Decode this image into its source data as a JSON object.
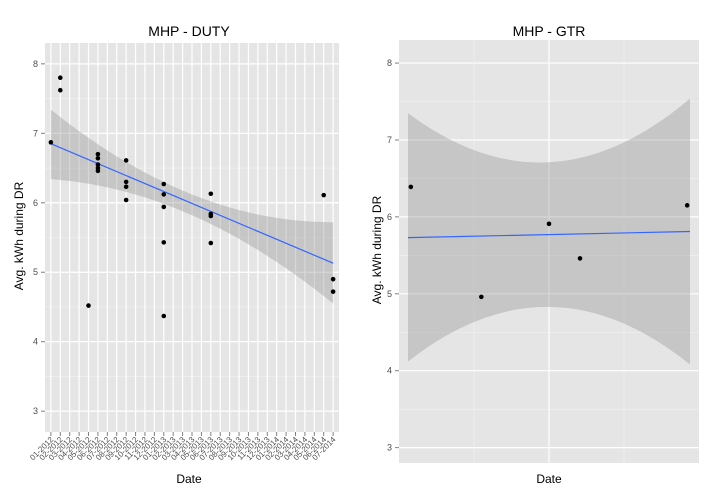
{
  "chart_data": [
    {
      "type": "scatter",
      "title": "MHP -   DUTY",
      "xlabel": "Date",
      "ylabel": "Avg. kWh during DR",
      "ylim": [
        2.7,
        8.3
      ],
      "yticks": [
        3,
        4,
        5,
        6,
        7,
        8
      ],
      "grid": true,
      "xtick_labels": [
        "01-2012",
        "02-2012",
        "03-2012",
        "04-2012",
        "05-2012",
        "06-2012",
        "07-2012",
        "08-2012",
        "09-2012",
        "10-2012",
        "11-2012",
        "12-2012",
        "01-2013",
        "02-2013",
        "03-2013",
        "04-2013",
        "05-2013",
        "06-2013",
        "07-2013",
        "08-2013",
        "09-2013",
        "10-2013",
        "11-2013",
        "12-2013",
        "01-2014",
        "02-2014",
        "03-2014",
        "04-2014",
        "05-2014",
        "06-2014",
        "07-2014"
      ],
      "points": [
        {
          "x": "2012-01",
          "y": 6.87
        },
        {
          "x": "2012-02",
          "y": 7.8
        },
        {
          "x": "2012-02",
          "y": 7.62
        },
        {
          "x": "2012-05",
          "y": 4.52
        },
        {
          "x": "2012-06",
          "y": 6.7
        },
        {
          "x": "2012-06",
          "y": 6.64
        },
        {
          "x": "2012-06",
          "y": 6.55
        },
        {
          "x": "2012-06",
          "y": 6.5
        },
        {
          "x": "2012-06",
          "y": 6.46
        },
        {
          "x": "2012-09",
          "y": 6.61
        },
        {
          "x": "2012-09",
          "y": 6.3
        },
        {
          "x": "2012-09",
          "y": 6.23
        },
        {
          "x": "2012-09",
          "y": 6.04
        },
        {
          "x": "2013-01",
          "y": 6.27
        },
        {
          "x": "2013-01",
          "y": 6.12
        },
        {
          "x": "2013-01",
          "y": 5.94
        },
        {
          "x": "2013-01",
          "y": 5.43
        },
        {
          "x": "2013-01",
          "y": 4.37
        },
        {
          "x": "2013-06",
          "y": 6.13
        },
        {
          "x": "2013-06",
          "y": 5.84
        },
        {
          "x": "2013-06",
          "y": 5.81
        },
        {
          "x": "2013-06",
          "y": 5.42
        },
        {
          "x": "2014-06",
          "y": 6.11
        },
        {
          "x": "2014-07",
          "y": 4.9
        },
        {
          "x": "2014-07",
          "y": 4.72
        }
      ],
      "trend": {
        "x": [
          "2012-01",
          "2014-07"
        ],
        "y": [
          6.85,
          5.13
        ]
      },
      "confidence_band": {
        "x": [
          "2012-01",
          "2013-04",
          "2014-07"
        ],
        "upper": [
          7.34,
          6.12,
          5.72
        ],
        "lower": [
          6.34,
          5.82,
          4.55
        ]
      },
      "colors": {
        "points": "#000000",
        "trend": "#3366ff",
        "band": "#999999",
        "panel": "#e5e5e5"
      }
    },
    {
      "type": "scatter",
      "title": "MHP -   GTR",
      "xlabel": "Date",
      "ylabel": "Avg. kWh during DR",
      "ylim": [
        2.8,
        8.3
      ],
      "yticks": [
        3,
        4,
        5,
        6,
        7,
        8
      ],
      "grid": true,
      "xtick_labels": [],
      "x_is_relative": true,
      "points": [
        {
          "x": 0.01,
          "y": 6.39
        },
        {
          "x": 0.26,
          "y": 4.96
        },
        {
          "x": 0.5,
          "y": 5.91
        },
        {
          "x": 0.61,
          "y": 5.46
        },
        {
          "x": 0.99,
          "y": 6.15
        }
      ],
      "trend": {
        "x": [
          0,
          1
        ],
        "y": [
          5.73,
          5.81
        ]
      },
      "confidence_band": {
        "x": [
          0,
          0.5,
          1
        ],
        "upper": [
          7.35,
          6.71,
          7.54
        ],
        "lower": [
          4.12,
          4.83,
          4.08
        ]
      },
      "colors": {
        "points": "#000000",
        "trend": "#3366ff",
        "band": "#999999",
        "panel": "#e5e5e5"
      }
    }
  ]
}
